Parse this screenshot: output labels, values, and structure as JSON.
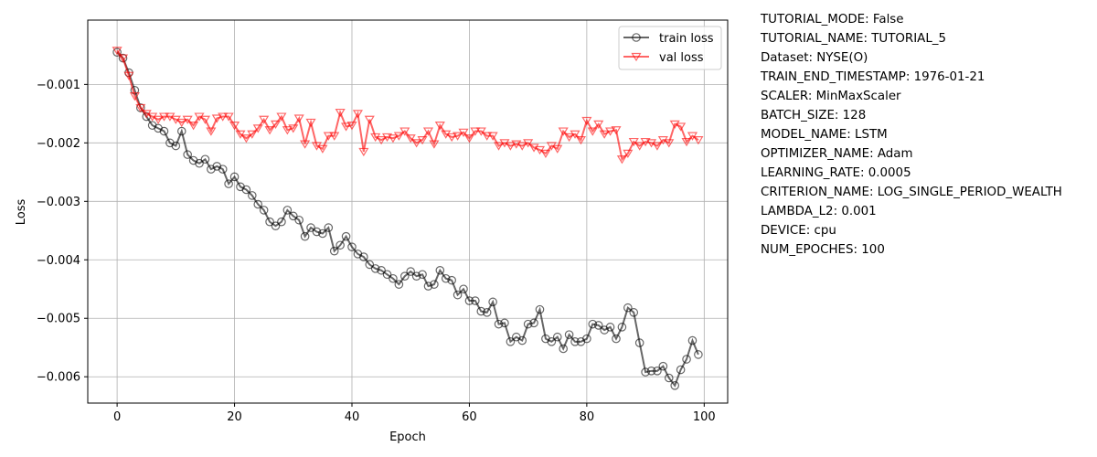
{
  "chart_data": {
    "type": "line",
    "title": "",
    "xlabel": "Epoch",
    "ylabel": "Loss",
    "xlim": [
      -5,
      104
    ],
    "ylim": [
      -0.00645,
      0.0001
    ],
    "xticks": [
      0,
      20,
      40,
      60,
      80,
      100
    ],
    "xtick_labels": [
      "0",
      "20",
      "40",
      "60",
      "80",
      "100"
    ],
    "yticks": [
      -0.001,
      -0.002,
      -0.003,
      -0.004,
      -0.005,
      -0.006
    ],
    "ytick_labels": [
      "−0.001",
      "−0.002",
      "−0.003",
      "−0.004",
      "−0.005",
      "−0.006"
    ],
    "grid": true,
    "legend_position": "top-right",
    "x": [
      0,
      1,
      2,
      3,
      4,
      5,
      6,
      7,
      8,
      9,
      10,
      11,
      12,
      13,
      14,
      15,
      16,
      17,
      18,
      19,
      20,
      21,
      22,
      23,
      24,
      25,
      26,
      27,
      28,
      29,
      30,
      31,
      32,
      33,
      34,
      35,
      36,
      37,
      38,
      39,
      40,
      41,
      42,
      43,
      44,
      45,
      46,
      47,
      48,
      49,
      50,
      51,
      52,
      53,
      54,
      55,
      56,
      57,
      58,
      59,
      60,
      61,
      62,
      63,
      64,
      65,
      66,
      67,
      68,
      69,
      70,
      71,
      72,
      73,
      74,
      75,
      76,
      77,
      78,
      79,
      80,
      81,
      82,
      83,
      84,
      85,
      86,
      87,
      88,
      89,
      90,
      91,
      92,
      93,
      94,
      95,
      96,
      97,
      98,
      99
    ],
    "series": [
      {
        "name": "train loss",
        "color": "#000000",
        "marker": "circle",
        "values": [
          -0.00045,
          -0.00055,
          -0.0008,
          -0.0011,
          -0.0014,
          -0.00155,
          -0.0017,
          -0.00175,
          -0.0018,
          -0.002,
          -0.00205,
          -0.0018,
          -0.0022,
          -0.0023,
          -0.00235,
          -0.00228,
          -0.00245,
          -0.0024,
          -0.00245,
          -0.0027,
          -0.00258,
          -0.00275,
          -0.0028,
          -0.0029,
          -0.00305,
          -0.00315,
          -0.00335,
          -0.00342,
          -0.00335,
          -0.00315,
          -0.00325,
          -0.00332,
          -0.0036,
          -0.00345,
          -0.00352,
          -0.00355,
          -0.00345,
          -0.00385,
          -0.00375,
          -0.0036,
          -0.00378,
          -0.0039,
          -0.00395,
          -0.00408,
          -0.00415,
          -0.00418,
          -0.00425,
          -0.00432,
          -0.00442,
          -0.00428,
          -0.0042,
          -0.00428,
          -0.00425,
          -0.00445,
          -0.00442,
          -0.00418,
          -0.00432,
          -0.00435,
          -0.0046,
          -0.0045,
          -0.0047,
          -0.0047,
          -0.00488,
          -0.0049,
          -0.00472,
          -0.0051,
          -0.00508,
          -0.0054,
          -0.00532,
          -0.00538,
          -0.0051,
          -0.00508,
          -0.00485,
          -0.00535,
          -0.0054,
          -0.00532,
          -0.00552,
          -0.00528,
          -0.0054,
          -0.0054,
          -0.00535,
          -0.0051,
          -0.00512,
          -0.0052,
          -0.00515,
          -0.00535,
          -0.00515,
          -0.00482,
          -0.0049,
          -0.00542,
          -0.00592,
          -0.0059,
          -0.0059,
          -0.00582,
          -0.00602,
          -0.00615,
          -0.00588,
          -0.0057,
          -0.00538,
          -0.00562
        ]
      },
      {
        "name": "val loss",
        "color": "#ff0000",
        "marker": "triangle-down",
        "values": [
          -0.00042,
          -0.00055,
          -0.00085,
          -0.0012,
          -0.0014,
          -0.0015,
          -0.00155,
          -0.0016,
          -0.00155,
          -0.00155,
          -0.0016,
          -0.00165,
          -0.0016,
          -0.0017,
          -0.00155,
          -0.0016,
          -0.0018,
          -0.00158,
          -0.00155,
          -0.00155,
          -0.0017,
          -0.00185,
          -0.00192,
          -0.00185,
          -0.00175,
          -0.0016,
          -0.00178,
          -0.00168,
          -0.00155,
          -0.00178,
          -0.00175,
          -0.00158,
          -0.00202,
          -0.00165,
          -0.00205,
          -0.0021,
          -0.00188,
          -0.00188,
          -0.00148,
          -0.00172,
          -0.0017,
          -0.0015,
          -0.00215,
          -0.0016,
          -0.0019,
          -0.00195,
          -0.0019,
          -0.00192,
          -0.00188,
          -0.0018,
          -0.00192,
          -0.002,
          -0.00195,
          -0.0018,
          -0.00202,
          -0.0017,
          -0.00185,
          -0.0019,
          -0.00188,
          -0.00182,
          -0.00192,
          -0.0018,
          -0.0018,
          -0.00188,
          -0.00188,
          -0.00205,
          -0.002,
          -0.00205,
          -0.00202,
          -0.00205,
          -0.002,
          -0.00208,
          -0.00212,
          -0.00218,
          -0.00205,
          -0.0021,
          -0.0018,
          -0.0019,
          -0.00185,
          -0.00195,
          -0.00162,
          -0.0018,
          -0.00168,
          -0.00185,
          -0.0018,
          -0.00178,
          -0.00228,
          -0.00218,
          -0.00198,
          -0.00205,
          -0.00198,
          -0.002,
          -0.00205,
          -0.00195,
          -0.002,
          -0.00168,
          -0.00172,
          -0.00198,
          -0.00188,
          -0.00195
        ]
      }
    ]
  },
  "info_lines": [
    "TUTORIAL_MODE: False",
    "TUTORIAL_NAME: TUTORIAL_5",
    "Dataset: NYSE(O)",
    "TRAIN_END_TIMESTAMP: 1976-01-21",
    "SCALER: MinMaxScaler",
    "BATCH_SIZE: 128",
    "MODEL_NAME: LSTM",
    "OPTIMIZER_NAME: Adam",
    "LEARNING_RATE: 0.0005",
    "CRITERION_NAME: LOG_SINGLE_PERIOD_WEALTH",
    "LAMBDA_L2: 0.001",
    "DEVICE: cpu",
    "NUM_EPOCHES: 100"
  ]
}
